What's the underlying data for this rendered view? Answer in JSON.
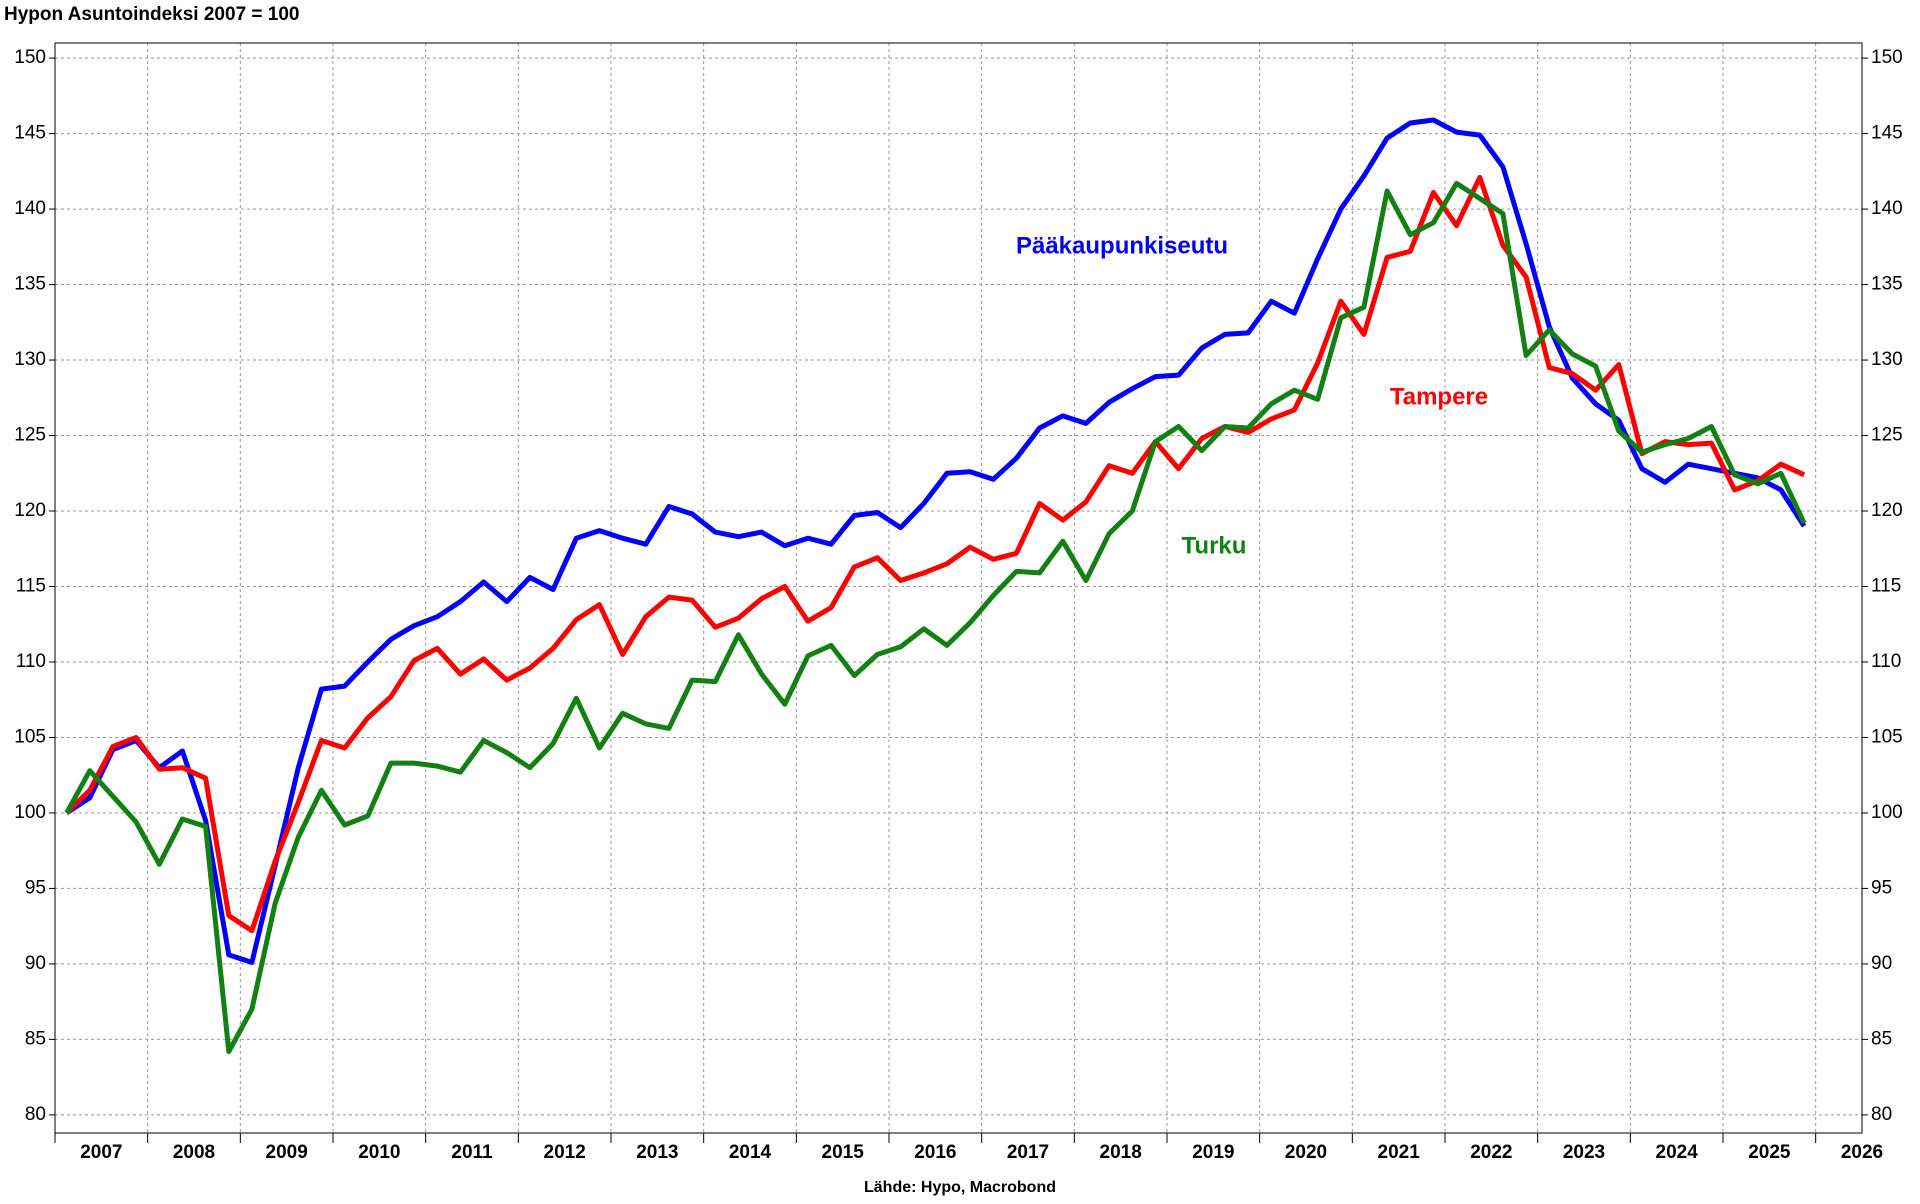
{
  "chart_data": {
    "type": "line",
    "title": "Hypon Asuntoindeksi 2007 = 100",
    "source": "Lähde: Hypo, Macrobond",
    "x": [
      2007.125,
      2007.375,
      2007.625,
      2007.875,
      2008.125,
      2008.375,
      2008.625,
      2008.875,
      2009.125,
      2009.375,
      2009.625,
      2009.875,
      2010.125,
      2010.375,
      2010.625,
      2010.875,
      2011.125,
      2011.375,
      2011.625,
      2011.875,
      2012.125,
      2012.375,
      2012.625,
      2012.875,
      2013.125,
      2013.375,
      2013.625,
      2013.875,
      2014.125,
      2014.375,
      2014.625,
      2014.875,
      2015.125,
      2015.375,
      2015.625,
      2015.875,
      2016.125,
      2016.375,
      2016.625,
      2016.875,
      2017.125,
      2017.375,
      2017.625,
      2017.875,
      2018.125,
      2018.375,
      2018.625,
      2018.875,
      2019.125,
      2019.375,
      2019.625,
      2019.875,
      2020.125,
      2020.375,
      2020.625,
      2020.875,
      2021.125,
      2021.375,
      2021.625,
      2021.875,
      2022.125,
      2022.375,
      2022.625,
      2022.875,
      2023.125,
      2023.375,
      2023.625,
      2023.875,
      2024.125,
      2024.375,
      2024.625,
      2024.875,
      2025.125,
      2025.375,
      2025.625,
      2025.875
    ],
    "series": [
      {
        "name": "Pääkaupunkiseutu",
        "color": "#0000ff",
        "values": [
          100,
          101,
          104.2,
          104.8,
          103,
          104.1,
          99.5,
          90.6,
          90.1,
          96.5,
          103,
          108.2,
          108.4,
          110,
          111.5,
          112.4,
          113,
          114,
          115.3,
          114,
          115.6,
          114.8,
          118.2,
          118.7,
          118.2,
          117.8,
          120.3,
          119.8,
          118.6,
          118.3,
          118.6,
          117.7,
          118.2,
          117.8,
          119.7,
          119.9,
          118.9,
          120.5,
          122.5,
          122.6,
          122.1,
          123.5,
          125.5,
          126.3,
          125.8,
          127.2,
          128.1,
          128.9,
          129,
          130.8,
          131.7,
          131.8,
          133.9,
          133.1,
          136.7,
          140,
          142.2,
          144.7,
          145.7,
          145.9,
          145.1,
          144.9,
          142.8,
          137.7,
          132.2,
          128.8,
          127.1,
          126,
          122.8,
          121.9,
          123.1,
          122.8,
          122.5,
          122.2,
          121.4,
          119
        ]
      },
      {
        "name": "Tampere",
        "color": "#ff0000",
        "values": [
          100,
          101.5,
          104.4,
          105,
          102.9,
          103,
          102.3,
          93.2,
          92.2,
          96.8,
          100.7,
          104.8,
          104.3,
          106.3,
          107.7,
          110.1,
          110.9,
          109.2,
          110.2,
          108.8,
          109.6,
          110.9,
          112.8,
          113.8,
          110.5,
          113,
          114.3,
          114.1,
          112.3,
          112.9,
          114.2,
          115,
          112.7,
          113.6,
          116.3,
          116.9,
          115.4,
          115.9,
          116.5,
          117.6,
          116.8,
          117.2,
          120.5,
          119.4,
          120.6,
          123,
          122.5,
          124.6,
          122.8,
          124.8,
          125.6,
          125.2,
          126.1,
          126.7,
          129.8,
          133.9,
          131.7,
          136.8,
          137.2,
          141.1,
          138.9,
          142.1,
          137.6,
          135.5,
          129.5,
          129.1,
          128,
          129.7,
          123.8,
          124.6,
          124.4,
          124.5,
          121.4,
          122,
          123.1,
          122.4
        ]
      },
      {
        "name": "Turku",
        "color": "#138013",
        "values": [
          100,
          102.8,
          101.1,
          99.4,
          96.6,
          99.6,
          99.1,
          84.2,
          87,
          94,
          98.4,
          101.5,
          99.2,
          99.8,
          103.3,
          103.3,
          103.1,
          102.7,
          104.8,
          104,
          103,
          104.6,
          107.6,
          104.3,
          106.6,
          105.9,
          105.6,
          108.8,
          108.7,
          111.8,
          109.2,
          107.2,
          110.4,
          111.1,
          109.1,
          110.5,
          111,
          112.2,
          111.1,
          112.6,
          114.4,
          116,
          115.9,
          118,
          115.4,
          118.5,
          120,
          124.6,
          125.6,
          124,
          125.6,
          125.5,
          127.1,
          128,
          127.4,
          132.8,
          133.5,
          141.2,
          138.3,
          139.1,
          141.7,
          140.7,
          139.7,
          130.3,
          132,
          130.4,
          129.6,
          125.3,
          123.9,
          124.4,
          124.8,
          125.6,
          122.4,
          121.8,
          122.5,
          119.2
        ]
      }
    ],
    "xlim": [
      2007,
      2026.5
    ],
    "xticks": [
      2007,
      2008,
      2009,
      2010,
      2011,
      2012,
      2013,
      2014,
      2015,
      2016,
      2017,
      2018,
      2019,
      2020,
      2021,
      2022,
      2023,
      2024,
      2025,
      2026
    ],
    "ylim": [
      78.8,
      151
    ],
    "yticks": [
      80,
      85,
      90,
      95,
      100,
      105,
      110,
      115,
      120,
      125,
      130,
      135,
      140,
      145,
      150
    ],
    "grid": true
  }
}
